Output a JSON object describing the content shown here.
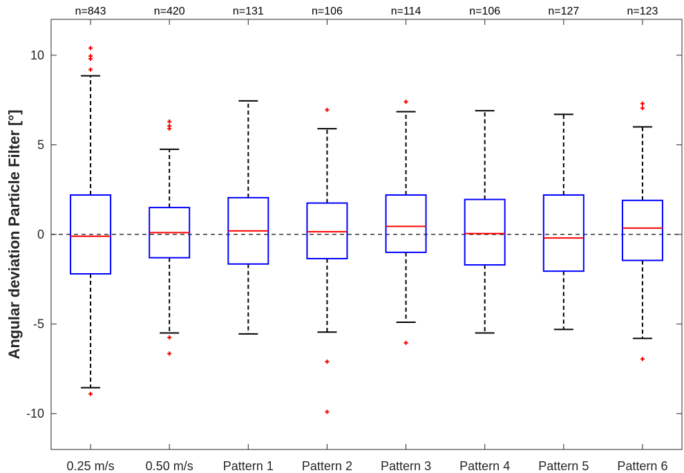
{
  "chart_data": {
    "type": "box",
    "ylabel": "Angular deviation Particle Filter [°]",
    "ylim": [
      -12,
      12
    ],
    "yticks": [
      -10,
      -5,
      0,
      5,
      10
    ],
    "reference_line": 0,
    "categories": [
      "0.25 m/s",
      "0.50 m/s",
      "Pattern 1",
      "Pattern 2",
      "Pattern 3",
      "Pattern 4",
      "Pattern 5",
      "Pattern 6"
    ],
    "counts": [
      "n=843",
      "n=420",
      "n=131",
      "n=106",
      "n=114",
      "n=106",
      "n=127",
      "n=123"
    ],
    "boxes": [
      {
        "whisker_low": -8.55,
        "q1": -2.2,
        "median": -0.1,
        "q3": 2.2,
        "whisker_high": 8.85,
        "outliers": [
          -8.9,
          9.2,
          9.8,
          9.95,
          10.4
        ]
      },
      {
        "whisker_low": -5.5,
        "q1": -1.3,
        "median": 0.1,
        "q3": 1.5,
        "whisker_high": 4.75,
        "outliers": [
          -6.65,
          -5.75,
          5.9,
          6.05,
          6.3
        ]
      },
      {
        "whisker_low": -5.55,
        "q1": -1.65,
        "median": 0.2,
        "q3": 2.05,
        "whisker_high": 7.45,
        "outliers": []
      },
      {
        "whisker_low": -5.45,
        "q1": -1.35,
        "median": 0.15,
        "q3": 1.75,
        "whisker_high": 5.9,
        "outliers": [
          -9.9,
          -7.1,
          6.95
        ]
      },
      {
        "whisker_low": -4.9,
        "q1": -1.0,
        "median": 0.45,
        "q3": 2.2,
        "whisker_high": 6.85,
        "outliers": [
          -6.05,
          7.4
        ]
      },
      {
        "whisker_low": -5.5,
        "q1": -1.7,
        "median": 0.05,
        "q3": 1.95,
        "whisker_high": 6.9,
        "outliers": []
      },
      {
        "whisker_low": -5.3,
        "q1": -2.05,
        "median": -0.2,
        "q3": 2.2,
        "whisker_high": 6.7,
        "outliers": []
      },
      {
        "whisker_low": -5.8,
        "q1": -1.45,
        "median": 0.35,
        "q3": 1.9,
        "whisker_high": 6.0,
        "outliers": [
          -6.95,
          7.05,
          7.3
        ]
      }
    ],
    "grid": false,
    "legend": "none"
  },
  "colors": {
    "box": "#0000ff",
    "median": "#ff0000",
    "whisker": "#000000",
    "outlier": "#ff0000",
    "reference": "#333333",
    "axes": "#262626"
  }
}
